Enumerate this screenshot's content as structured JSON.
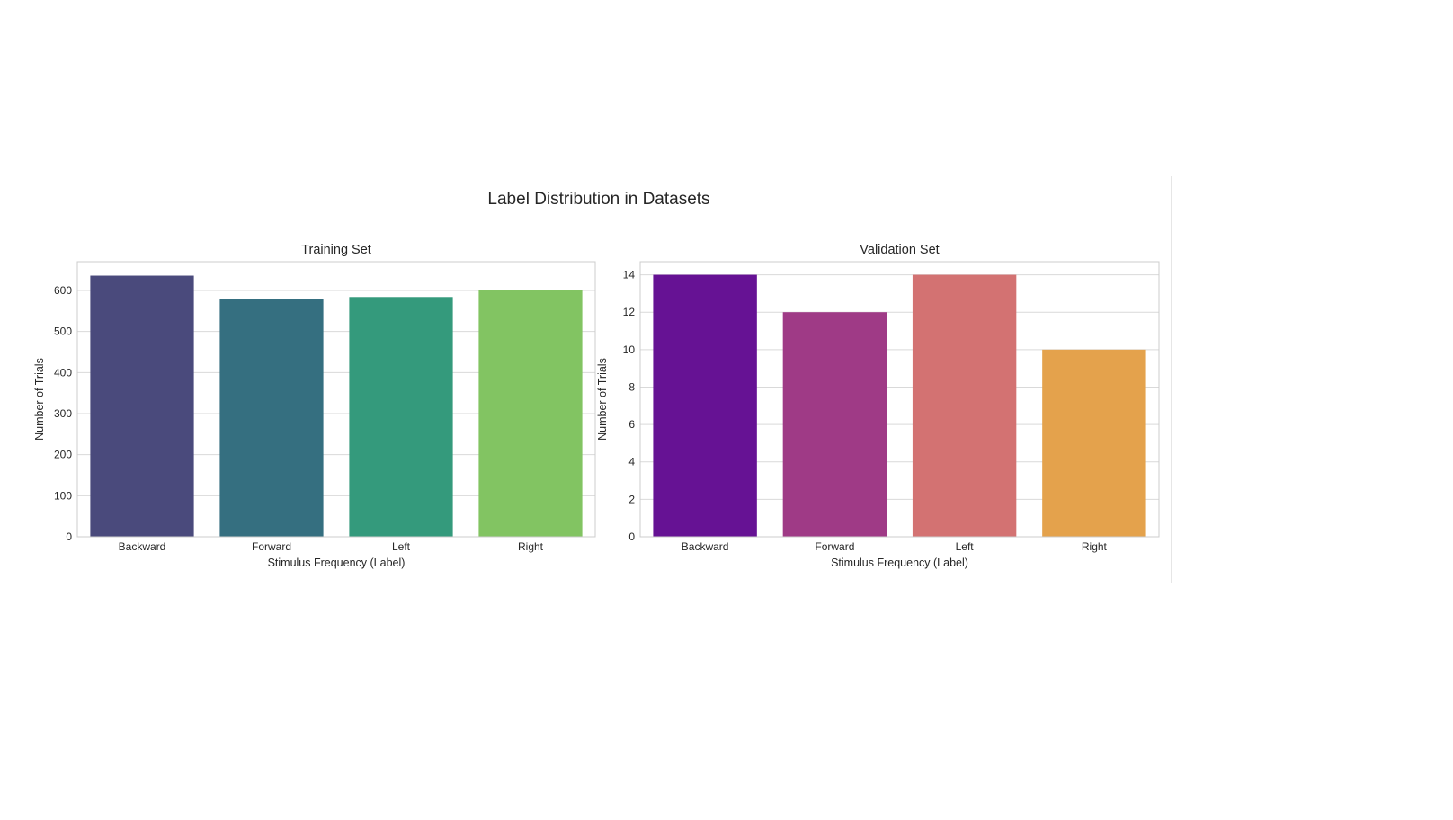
{
  "figure": {
    "suptitle": "Label Distribution in Datasets"
  },
  "chart_data": [
    {
      "type": "bar",
      "title": "Training Set",
      "xlabel": "Stimulus Frequency (Label)",
      "ylabel": "Number of Trials",
      "categories": [
        "Backward",
        "Forward",
        "Left",
        "Right"
      ],
      "values": [
        636,
        580,
        584,
        600
      ],
      "ylim": [
        0,
        670
      ],
      "yticks": [
        0,
        100,
        200,
        300,
        400,
        500,
        600
      ],
      "grid": true,
      "legend": "none",
      "colors": [
        "#4a4a7c",
        "#356f80",
        "#349a7c",
        "#82c462"
      ]
    },
    {
      "type": "bar",
      "title": "Validation Set",
      "xlabel": "Stimulus Frequency (Label)",
      "ylabel": "Number of Trials",
      "categories": [
        "Backward",
        "Forward",
        "Left",
        "Right"
      ],
      "values": [
        14,
        12,
        14,
        10
      ],
      "ylim": [
        0,
        14.7
      ],
      "yticks": [
        0,
        2,
        4,
        6,
        8,
        10,
        12,
        14
      ],
      "grid": true,
      "legend": "none",
      "colors": [
        "#661294",
        "#9f3a86",
        "#d37272",
        "#e4a24c"
      ]
    }
  ]
}
